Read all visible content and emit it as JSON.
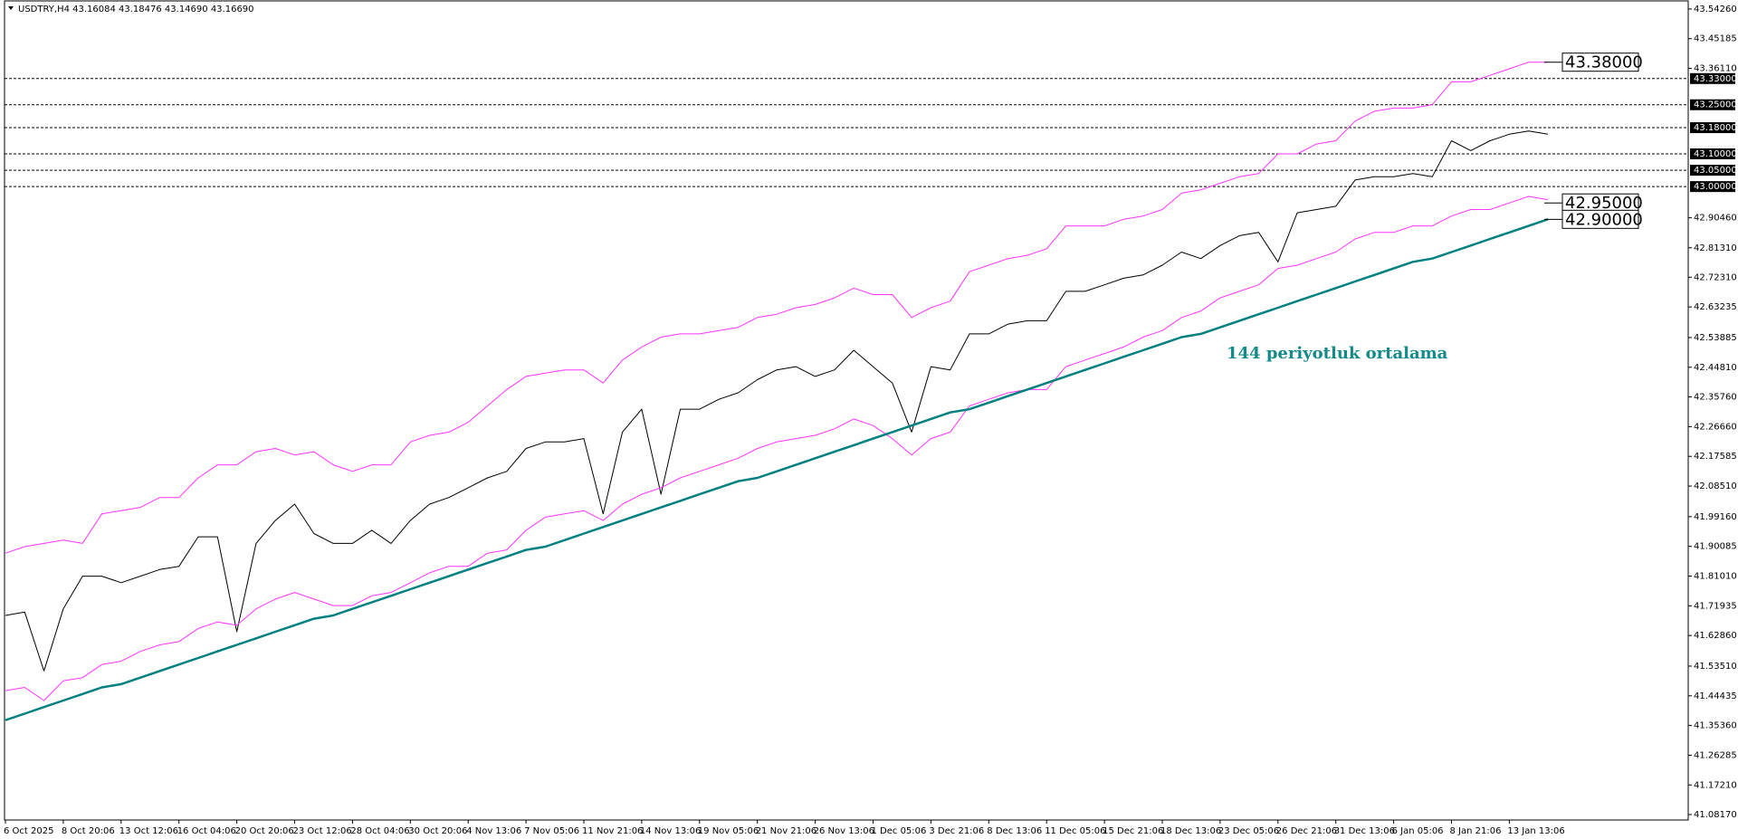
{
  "chart_data": {
    "type": "line",
    "title": "USDTRY,H4  43.16084 43.18476 43.14690 43.16690",
    "categories": [
      "6 Oct 2025",
      null,
      null,
      "8 Oct 20:06",
      null,
      null,
      "13 Oct 12:06",
      null,
      null,
      "16 Oct 04:06",
      null,
      null,
      "20 Oct 20:06",
      null,
      null,
      "23 Oct 12:06",
      null,
      null,
      "28 Oct 04:06",
      null,
      null,
      "30 Oct 20:06",
      null,
      null,
      "4 Nov 13:06",
      null,
      null,
      "7 Nov 05:06",
      null,
      null,
      "11 Nov 21:06",
      null,
      null,
      "14 Nov 13:06",
      null,
      null,
      "19 Nov 05:06",
      null,
      null,
      "21 Nov 21:06",
      null,
      null,
      "26 Nov 13:06",
      null,
      null,
      "1 Dec 05:06",
      null,
      null,
      "3 Dec 21:06",
      null,
      null,
      "8 Dec 13:06",
      null,
      null,
      "11 Dec 05:06",
      null,
      null,
      "15 Dec 21:06",
      null,
      null,
      "18 Dec 13:06",
      null,
      null,
      "23 Dec 05:06",
      null,
      null,
      "26 Dec 21:06",
      null,
      null,
      "31 Dec 13:06",
      null,
      null,
      "6 Jan 05:06",
      null,
      null,
      "8 Jan 21:06",
      null,
      null,
      "13 Jan 13:06",
      null,
      null
    ],
    "series": [
      {
        "color": "#000000",
        "width": 1,
        "values": [
          41.69,
          41.7,
          41.52,
          41.71,
          41.81,
          41.81,
          41.79,
          41.81,
          41.83,
          41.84,
          41.93,
          41.93,
          41.64,
          41.91,
          41.98,
          42.03,
          41.94,
          41.91,
          41.91,
          41.95,
          41.91,
          41.98,
          42.03,
          42.05,
          42.08,
          42.11,
          42.13,
          42.2,
          42.22,
          42.22,
          42.23,
          42.0,
          42.25,
          42.32,
          42.06,
          42.32,
          42.32,
          42.35,
          42.37,
          42.41,
          42.44,
          42.45,
          42.42,
          42.44,
          42.5,
          42.45,
          42.4,
          42.25,
          42.45,
          42.44,
          42.55,
          42.55,
          42.58,
          42.59,
          42.59,
          42.68,
          42.68,
          42.7,
          42.72,
          42.73,
          42.76,
          42.8,
          42.78,
          42.82,
          42.85,
          42.86,
          42.77,
          42.92,
          42.93,
          42.94,
          43.02,
          43.03,
          43.03,
          43.04,
          43.03,
          43.14,
          43.11,
          43.14,
          43.16,
          43.17,
          43.16
        ]
      },
      {
        "color": "#ff33ff",
        "width": 1,
        "values": [
          41.88,
          41.9,
          41.91,
          41.92,
          41.91,
          42.0,
          42.01,
          42.02,
          42.05,
          42.05,
          42.11,
          42.15,
          42.15,
          42.19,
          42.2,
          42.18,
          42.19,
          42.15,
          42.13,
          42.15,
          42.15,
          42.22,
          42.24,
          42.25,
          42.28,
          42.33,
          42.38,
          42.42,
          42.43,
          42.44,
          42.44,
          42.4,
          42.47,
          42.51,
          42.54,
          42.55,
          42.55,
          42.56,
          42.57,
          42.6,
          42.61,
          42.63,
          42.64,
          42.66,
          42.69,
          42.67,
          42.67,
          42.6,
          42.63,
          42.65,
          42.74,
          42.76,
          42.78,
          42.79,
          42.81,
          42.88,
          42.88,
          42.88,
          42.9,
          42.91,
          42.93,
          42.98,
          42.99,
          43.01,
          43.03,
          43.04,
          43.1,
          43.1,
          43.13,
          43.14,
          43.2,
          43.23,
          43.24,
          43.24,
          43.25,
          43.32,
          43.32,
          43.34,
          43.36,
          43.38,
          43.38
        ]
      },
      {
        "color": "#ff33ff",
        "width": 1,
        "values": [
          41.46,
          41.47,
          41.43,
          41.49,
          41.5,
          41.54,
          41.55,
          41.58,
          41.6,
          41.61,
          41.65,
          41.67,
          41.66,
          41.71,
          41.74,
          41.76,
          41.74,
          41.72,
          41.72,
          41.75,
          41.76,
          41.79,
          41.82,
          41.84,
          41.84,
          41.88,
          41.89,
          41.95,
          41.99,
          42.0,
          42.01,
          41.98,
          42.03,
          42.06,
          42.08,
          42.11,
          42.13,
          42.15,
          42.17,
          42.2,
          42.22,
          42.23,
          42.24,
          42.26,
          42.29,
          42.27,
          42.23,
          42.18,
          42.23,
          42.25,
          42.33,
          42.35,
          42.37,
          42.38,
          42.38,
          42.45,
          42.47,
          42.49,
          42.51,
          42.54,
          42.56,
          42.6,
          42.62,
          42.66,
          42.68,
          42.7,
          42.75,
          42.76,
          42.78,
          42.8,
          42.84,
          42.86,
          42.86,
          42.88,
          42.88,
          42.91,
          42.93,
          42.93,
          42.95,
          42.97,
          42.96
        ]
      },
      {
        "color": "#008080",
        "width": 2.5,
        "values": [
          41.37,
          41.39,
          41.41,
          41.43,
          41.45,
          41.47,
          41.48,
          41.5,
          41.52,
          41.54,
          41.56,
          41.58,
          41.6,
          41.62,
          41.64,
          41.66,
          41.68,
          41.69,
          41.71,
          41.73,
          41.75,
          41.77,
          41.79,
          41.81,
          41.83,
          41.85,
          41.87,
          41.89,
          41.9,
          41.92,
          41.94,
          41.96,
          41.98,
          42.0,
          42.02,
          42.04,
          42.06,
          42.08,
          42.1,
          42.11,
          42.13,
          42.15,
          42.17,
          42.19,
          42.21,
          42.23,
          42.25,
          42.27,
          42.29,
          42.31,
          42.32,
          42.34,
          42.36,
          42.38,
          42.4,
          42.42,
          42.44,
          42.46,
          42.48,
          42.5,
          42.52,
          42.54,
          42.55,
          42.57,
          42.59,
          42.61,
          42.63,
          42.65,
          42.67,
          42.69,
          42.71,
          42.73,
          42.75,
          42.77,
          42.78,
          42.8,
          42.82,
          42.84,
          42.86,
          42.88,
          42.9
        ]
      }
    ],
    "ylim": [
      41.065,
      43.57
    ],
    "yticks": [
      {
        "value": 43.5426,
        "label": "43.54260"
      },
      {
        "value": 43.45185,
        "label": "43.45185"
      },
      {
        "value": 43.3611,
        "label": "43.36110"
      },
      {
        "value": 42.9046,
        "label": "42.90460"
      },
      {
        "value": 42.8131,
        "label": "42.81310"
      },
      {
        "value": 42.7231,
        "label": "42.72310"
      },
      {
        "value": 42.63235,
        "label": "42.63235"
      },
      {
        "value": 42.53885,
        "label": "42.53885"
      },
      {
        "value": 42.4481,
        "label": "42.44810"
      },
      {
        "value": 42.3576,
        "label": "42.35760"
      },
      {
        "value": 42.2666,
        "label": "42.26660"
      },
      {
        "value": 42.17585,
        "label": "42.17585"
      },
      {
        "value": 42.0851,
        "label": "42.08510"
      },
      {
        "value": 41.9916,
        "label": "41.99160"
      },
      {
        "value": 41.90085,
        "label": "41.90085"
      },
      {
        "value": 41.8101,
        "label": "41.81010"
      },
      {
        "value": 41.71935,
        "label": "41.71935"
      },
      {
        "value": 41.6286,
        "label": "41.62860"
      },
      {
        "value": 41.5351,
        "label": "41.53510"
      },
      {
        "value": 41.44435,
        "label": "41.44435"
      },
      {
        "value": 41.3536,
        "label": "41.35360"
      },
      {
        "value": 41.26285,
        "label": "41.26285"
      },
      {
        "value": 41.1721,
        "label": "41.17210"
      },
      {
        "value": 41.0817,
        "label": "41.08170"
      }
    ],
    "levels": [
      {
        "value": 43.33,
        "label": "43.33000"
      },
      {
        "value": 43.25,
        "label": "43.25000"
      },
      {
        "value": 43.18,
        "label": "43.18000"
      },
      {
        "value": 43.1,
        "label": "43.10000"
      },
      {
        "value": 43.05,
        "label": "43.05000"
      },
      {
        "value": 43.0,
        "label": "43.00000"
      }
    ],
    "annotations": [
      {
        "value": 43.38,
        "label": "43.38000"
      },
      {
        "value": 42.95,
        "label": "42.95000"
      },
      {
        "value": 42.9,
        "label": "42.90000"
      }
    ],
    "ma_label": "144 periyotluk ortalama",
    "grid": false
  }
}
